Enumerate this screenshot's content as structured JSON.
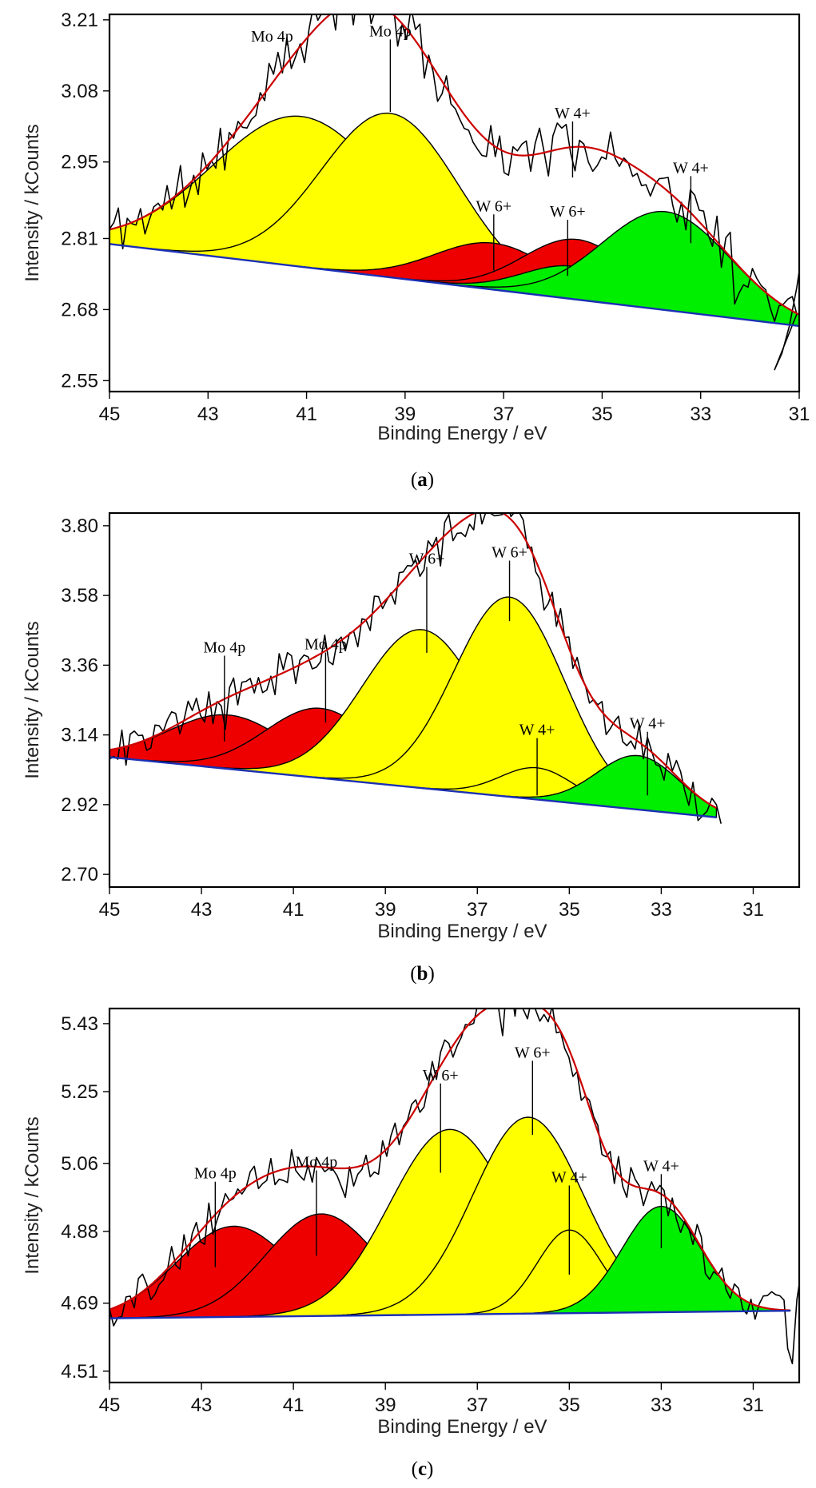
{
  "colors": {
    "red": "#ee0000",
    "yellow": "#ffff00",
    "green": "#00ee00",
    "envelope": "#cc0000",
    "background": "#1a2fb5",
    "raw": "#000000"
  },
  "chart_data": [
    {
      "type": "area",
      "panel": "a",
      "caption": "a",
      "xlabel": "Binding Energy / eV",
      "ylabel": "Intensity / kCounts",
      "xlim": [
        45,
        31
      ],
      "ylim": [
        2.53,
        3.22
      ],
      "xticks": [
        "45",
        "43",
        "41",
        "39",
        "37",
        "35",
        "33",
        "31"
      ],
      "yticks": [
        "3.21",
        "3.08",
        "2.95",
        "2.81",
        "2.68",
        "2.55"
      ],
      "raw_range": [
        45.0,
        31.0
      ],
      "raw_seed": 11,
      "raw_noise": 0.05,
      "raw_tail": [
        [
          31.5,
          2.57
        ],
        [
          31.35,
          2.6
        ],
        [
          31.2,
          2.65
        ],
        [
          31.05,
          2.72
        ],
        [
          31.0,
          2.75
        ]
      ],
      "background": {
        "x": [
          45,
          31
        ],
        "y": [
          2.8,
          2.65
        ]
      },
      "components": [
        {
          "name": "Mo 4p",
          "color": "yellow",
          "center": 41.1,
          "height": 0.275,
          "width": 1.8
        },
        {
          "name": "Mo 4p",
          "color": "yellow",
          "center": 39.3,
          "height": 0.3,
          "width": 1.4
        },
        {
          "name": "W 6+",
          "color": "red",
          "center": 37.2,
          "height": 0.085,
          "width": 1.2
        },
        {
          "name": "W 6+",
          "color": "red",
          "center": 35.5,
          "height": 0.11,
          "width": 1.1
        },
        {
          "name": "W 4+",
          "color": "green",
          "center": 35.6,
          "height": 0.06,
          "width": 1.0
        },
        {
          "name": "W 4+",
          "color": "green",
          "center": 33.7,
          "height": 0.18,
          "width": 1.3
        }
      ],
      "labels": [
        {
          "text": "Mo 4p",
          "x": 41.7,
          "y": 3.17,
          "line_to": null
        },
        {
          "text": "Mo 4p",
          "x": 39.3,
          "y": 3.18,
          "line_to": 3.1
        },
        {
          "text": "W 4+",
          "x": 35.6,
          "y": 3.03,
          "line_to": 2.98
        },
        {
          "text": "W 4+",
          "x": 33.2,
          "y": 2.93,
          "line_to": 2.86
        },
        {
          "text": "W 6+",
          "x": 37.2,
          "y": 2.86,
          "line_to": 2.81
        },
        {
          "text": "W 6+",
          "x": 35.7,
          "y": 2.85,
          "line_to": 2.8
        }
      ]
    },
    {
      "type": "area",
      "panel": "b",
      "caption": "b",
      "xlabel": "Binding Energy / eV",
      "ylabel": "Intensity / kCounts",
      "xlim": [
        45,
        30
      ],
      "ylim": [
        2.66,
        3.84
      ],
      "xticks": [
        "45",
        "43",
        "41",
        "39",
        "37",
        "35",
        "33",
        "31"
      ],
      "yticks": [
        "3.80",
        "3.58",
        "3.36",
        "3.14",
        "2.92",
        "2.70"
      ],
      "raw_range": [
        45.0,
        32.3
      ],
      "raw_seed": 23,
      "raw_noise": 0.06,
      "raw_tail": [
        [
          32.2,
          2.87
        ],
        [
          32.0,
          2.9
        ],
        [
          31.9,
          2.94
        ],
        [
          31.8,
          2.92
        ],
        [
          31.7,
          2.86
        ]
      ],
      "background": {
        "x": [
          45,
          31.8
        ],
        "y": [
          3.07,
          2.88
        ]
      },
      "components": [
        {
          "name": "Mo 4p",
          "color": "red",
          "center": 42.4,
          "height": 0.17,
          "width": 1.3
        },
        {
          "name": "Mo 4p",
          "color": "red",
          "center": 40.4,
          "height": 0.22,
          "width": 1.2
        },
        {
          "name": "W 6+",
          "color": "yellow",
          "center": 38.2,
          "height": 0.5,
          "width": 1.3
        },
        {
          "name": "W 6+",
          "color": "yellow",
          "center": 36.3,
          "height": 0.63,
          "width": 1.2
        },
        {
          "name": "W 4+",
          "color": "yellow",
          "center": 35.7,
          "height": 0.1,
          "width": 0.8
        },
        {
          "name": "W 4+",
          "color": "green",
          "center": 33.5,
          "height": 0.17,
          "width": 0.9
        }
      ],
      "labels": [
        {
          "text": "Mo 4p",
          "x": 42.5,
          "y": 3.4,
          "line_to": 3.22
        },
        {
          "text": "Mo 4p",
          "x": 40.3,
          "y": 3.41,
          "line_to": 3.28
        },
        {
          "text": "W 6+",
          "x": 38.1,
          "y": 3.68,
          "line_to": 3.5
        },
        {
          "text": "W 6+",
          "x": 36.3,
          "y": 3.7,
          "line_to": 3.6
        },
        {
          "text": "W 4+",
          "x": 35.7,
          "y": 3.14,
          "line_to": 3.05
        },
        {
          "text": "W 4+",
          "x": 33.3,
          "y": 3.16,
          "line_to": 3.05
        }
      ]
    },
    {
      "type": "area",
      "panel": "c",
      "caption": "c",
      "xlabel": "Binding Energy / eV",
      "ylabel": "Intensity / kCounts",
      "xlim": [
        45,
        30
      ],
      "ylim": [
        4.48,
        5.47
      ],
      "xticks": [
        "45",
        "43",
        "41",
        "39",
        "37",
        "35",
        "33",
        "31"
      ],
      "yticks": [
        "5.43",
        "5.25",
        "5.06",
        "4.88",
        "4.69",
        "4.51"
      ],
      "raw_range": [
        45.0,
        30.25
      ],
      "raw_seed": 37,
      "raw_noise": 0.05,
      "raw_tail": [
        [
          30.25,
          4.57
        ],
        [
          30.15,
          4.53
        ],
        [
          30.05,
          4.7
        ],
        [
          30.0,
          4.74
        ]
      ],
      "background": {
        "x": [
          45,
          30.2
        ],
        "y": [
          4.65,
          4.67
        ]
      },
      "components": [
        {
          "name": "Mo 4p",
          "color": "red",
          "center": 42.3,
          "height": 0.24,
          "width": 1.25
        },
        {
          "name": "Mo 4p",
          "color": "red",
          "center": 40.4,
          "height": 0.27,
          "width": 1.2
        },
        {
          "name": "W 6+",
          "color": "yellow",
          "center": 37.6,
          "height": 0.49,
          "width": 1.3
        },
        {
          "name": "W 6+",
          "color": "yellow",
          "center": 35.9,
          "height": 0.52,
          "width": 1.2
        },
        {
          "name": "W 4+",
          "color": "yellow",
          "center": 35.0,
          "height": 0.22,
          "width": 0.7
        },
        {
          "name": "W 4+",
          "color": "green",
          "center": 33.0,
          "height": 0.28,
          "width": 0.85
        }
      ],
      "labels": [
        {
          "text": "Mo 4p",
          "x": 42.7,
          "y": 5.02,
          "line_to": 4.87
        },
        {
          "text": "Mo 4p",
          "x": 40.5,
          "y": 5.05,
          "line_to": 4.9
        },
        {
          "text": "W 6+",
          "x": 37.8,
          "y": 5.28,
          "line_to": 5.12
        },
        {
          "text": "W 6+",
          "x": 35.8,
          "y": 5.34,
          "line_to": 5.22
        },
        {
          "text": "W 4+",
          "x": 35.0,
          "y": 5.01,
          "line_to": 4.85
        },
        {
          "text": "W 4+",
          "x": 33.0,
          "y": 5.04,
          "line_to": 4.92
        }
      ]
    }
  ]
}
